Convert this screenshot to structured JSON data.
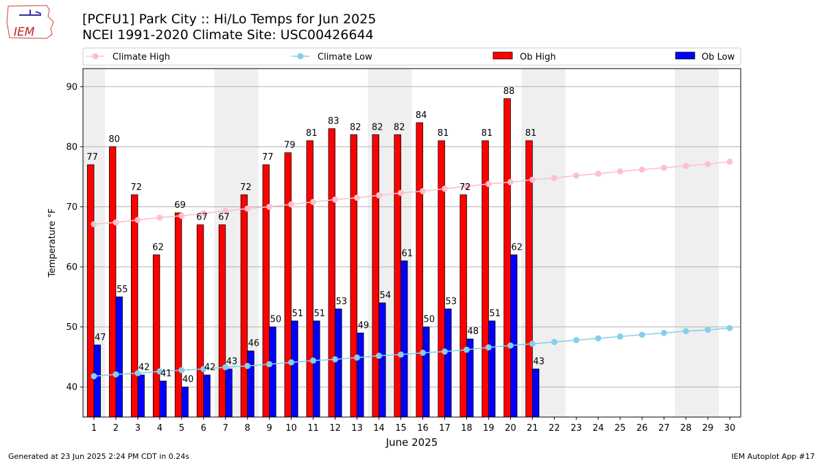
{
  "logo": {
    "text": "IEM",
    "icon": "iem-logo-iowa-outline"
  },
  "title_line1": "[PCFU1] Park City :: Hi/Lo Temps for Jun 2025",
  "title_line2": "NCEI 1991-2020 Climate Site: USC00426644",
  "footer_left": "Generated at 23 Jun 2025 2:24 PM CDT in 0.24s",
  "footer_right": "IEM Autoplot App #17",
  "chart_data": {
    "type": "bar",
    "xlabel": "June 2025",
    "ylabel": "Temperature °F",
    "ylim": [
      35,
      93
    ],
    "yticks": [
      40,
      50,
      60,
      70,
      80,
      90
    ],
    "grid": "horizontal",
    "legend_placement": "top",
    "categories": [
      1,
      2,
      3,
      4,
      5,
      6,
      7,
      8,
      9,
      10,
      11,
      12,
      13,
      14,
      15,
      16,
      17,
      18,
      19,
      20,
      21,
      22,
      23,
      24,
      25,
      26,
      27,
      28,
      29,
      30
    ],
    "weekend_days": [
      1,
      7,
      8,
      14,
      15,
      21,
      22,
      28,
      29
    ],
    "series": [
      {
        "name": "Ob High",
        "kind": "bar",
        "color": "#ff0000",
        "values": [
          77,
          80,
          72,
          62,
          69,
          67,
          67,
          72,
          77,
          79,
          81,
          83,
          82,
          82,
          82,
          84,
          81,
          72,
          81,
          88,
          81,
          null,
          null,
          null,
          null,
          null,
          null,
          null,
          null,
          null
        ]
      },
      {
        "name": "Ob Low",
        "kind": "bar",
        "color": "#0000ff",
        "values": [
          47,
          55,
          42,
          41,
          40,
          42,
          43,
          46,
          50,
          51,
          51,
          53,
          49,
          54,
          61,
          50,
          53,
          48,
          51,
          62,
          43,
          null,
          null,
          null,
          null,
          null,
          null,
          null,
          null,
          null
        ]
      },
      {
        "name": "Climate High",
        "kind": "line",
        "color": "#ffc0cb",
        "values": [
          67.1,
          67.4,
          67.8,
          68.2,
          68.5,
          68.9,
          69.3,
          69.7,
          70.0,
          70.4,
          70.8,
          71.2,
          71.5,
          71.9,
          72.3,
          72.6,
          73.0,
          73.4,
          73.8,
          74.1,
          74.5,
          74.8,
          75.2,
          75.5,
          75.9,
          76.2,
          76.5,
          76.8,
          77.1,
          77.5
        ]
      },
      {
        "name": "Climate Low",
        "kind": "line",
        "color": "#87ceeb",
        "values": [
          41.8,
          42.1,
          42.3,
          42.6,
          42.8,
          43.0,
          43.3,
          43.5,
          43.8,
          44.1,
          44.4,
          44.6,
          44.9,
          45.2,
          45.4,
          45.7,
          45.9,
          46.2,
          46.6,
          46.9,
          47.2,
          47.5,
          47.8,
          48.1,
          48.4,
          48.7,
          49.0,
          49.3,
          49.5,
          49.8
        ]
      }
    ]
  }
}
